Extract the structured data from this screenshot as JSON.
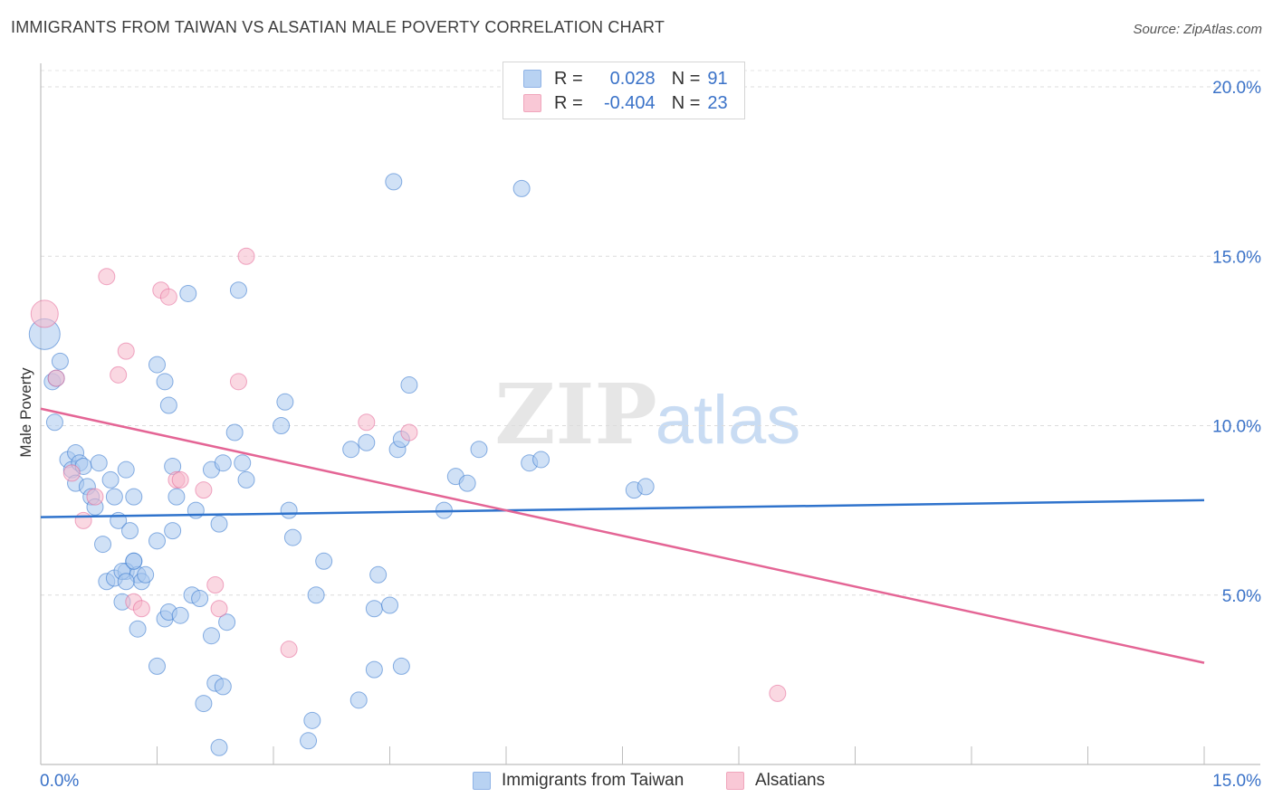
{
  "title": "IMMIGRANTS FROM TAIWAN VS ALSATIAN MALE POVERTY CORRELATION CHART",
  "source": "Source: ZipAtlas.com",
  "watermark": {
    "zip": "ZIP",
    "atlas": "atlas"
  },
  "legend_top": {
    "rows": [
      {
        "r_label": "R =",
        "r_value": "0.028",
        "n_label": "N =",
        "n_value": "91",
        "color": "#b8d2f2"
      },
      {
        "r_label": "R =",
        "r_value": "-0.404",
        "n_label": "N =",
        "n_value": "23",
        "color": "#f9c8d6"
      }
    ]
  },
  "legend_bottom": [
    "Immigrants from Taiwan",
    "Alsatians"
  ],
  "chart_data": {
    "type": "scatter",
    "title": "IMMIGRANTS FROM TAIWAN VS ALSATIAN MALE POVERTY CORRELATION CHART",
    "xlabel": "",
    "ylabel": "Male Poverty",
    "xlim": [
      0,
      15
    ],
    "ylim": [
      0,
      20
    ],
    "x_tick_labels": [
      "0.0%",
      "15.0%"
    ],
    "y_ticks": [
      5,
      10,
      15,
      20
    ],
    "y_tick_labels": [
      "5.0%",
      "10.0%",
      "15.0%",
      "20.0%"
    ],
    "grid": true,
    "series": [
      {
        "name": "Immigrants from Taiwan",
        "color": "#a9c8ef",
        "line_color": "#2f73cc",
        "trend": [
          [
            0,
            7.3
          ],
          [
            15,
            7.8
          ]
        ],
        "points": [
          [
            0.05,
            12.7
          ],
          [
            0.15,
            11.3
          ],
          [
            0.2,
            11.4
          ],
          [
            0.25,
            11.9
          ],
          [
            0.18,
            10.1
          ],
          [
            0.35,
            9.0
          ],
          [
            0.4,
            8.7
          ],
          [
            0.45,
            9.2
          ],
          [
            0.5,
            8.9
          ],
          [
            0.55,
            8.8
          ],
          [
            0.45,
            8.3
          ],
          [
            0.6,
            8.2
          ],
          [
            0.75,
            8.9
          ],
          [
            0.65,
            7.9
          ],
          [
            0.7,
            7.6
          ],
          [
            0.9,
            8.4
          ],
          [
            0.95,
            7.9
          ],
          [
            1.0,
            7.2
          ],
          [
            1.1,
            8.7
          ],
          [
            1.2,
            7.9
          ],
          [
            0.8,
            6.5
          ],
          [
            0.85,
            5.4
          ],
          [
            0.95,
            5.5
          ],
          [
            1.2,
            6.0
          ],
          [
            1.1,
            5.7
          ],
          [
            1.05,
            5.7
          ],
          [
            1.25,
            5.6
          ],
          [
            1.3,
            5.4
          ],
          [
            1.1,
            5.4
          ],
          [
            1.05,
            4.8
          ],
          [
            1.15,
            6.9
          ],
          [
            1.2,
            6.0
          ],
          [
            1.25,
            4.0
          ],
          [
            1.35,
            5.6
          ],
          [
            1.5,
            6.6
          ],
          [
            1.6,
            4.3
          ],
          [
            1.65,
            4.5
          ],
          [
            1.8,
            4.4
          ],
          [
            1.5,
            2.9
          ],
          [
            1.95,
            5.0
          ],
          [
            2.05,
            4.9
          ],
          [
            2.2,
            3.8
          ],
          [
            2.25,
            2.4
          ],
          [
            2.4,
            4.2
          ],
          [
            2.1,
            1.8
          ],
          [
            2.35,
            2.3
          ],
          [
            1.5,
            11.8
          ],
          [
            1.6,
            11.3
          ],
          [
            1.65,
            10.6
          ],
          [
            1.9,
            13.9
          ],
          [
            2.55,
            14.0
          ],
          [
            2.5,
            9.8
          ],
          [
            2.6,
            8.9
          ],
          [
            2.65,
            8.4
          ],
          [
            2.3,
            7.1
          ],
          [
            2.0,
            7.5
          ],
          [
            1.75,
            7.9
          ],
          [
            1.7,
            6.9
          ],
          [
            1.7,
            8.8
          ],
          [
            2.2,
            8.7
          ],
          [
            2.35,
            8.9
          ],
          [
            2.3,
            0.5
          ],
          [
            3.15,
            10.7
          ],
          [
            3.1,
            10.0
          ],
          [
            3.25,
            6.7
          ],
          [
            3.2,
            7.5
          ],
          [
            3.45,
            0.7
          ],
          [
            3.55,
            5.0
          ],
          [
            3.5,
            1.3
          ],
          [
            3.65,
            6.0
          ],
          [
            4.0,
            9.3
          ],
          [
            4.2,
            9.5
          ],
          [
            4.3,
            4.6
          ],
          [
            4.35,
            5.6
          ],
          [
            4.1,
            1.9
          ],
          [
            4.3,
            2.8
          ],
          [
            4.65,
            2.9
          ],
          [
            4.5,
            4.7
          ],
          [
            4.6,
            9.3
          ],
          [
            4.75,
            11.2
          ],
          [
            4.55,
            17.2
          ],
          [
            4.65,
            9.6
          ],
          [
            5.2,
            7.5
          ],
          [
            5.35,
            8.5
          ],
          [
            5.5,
            8.3
          ],
          [
            5.65,
            9.3
          ],
          [
            6.3,
            8.9
          ],
          [
            6.45,
            9.0
          ],
          [
            7.65,
            8.1
          ],
          [
            7.8,
            8.2
          ],
          [
            6.2,
            17.0
          ]
        ]
      },
      {
        "name": "Alsatians",
        "color": "#f6b8cb",
        "line_color": "#e46595",
        "trend": [
          [
            0,
            10.5
          ],
          [
            15,
            3.0
          ]
        ],
        "points": [
          [
            0.05,
            13.3
          ],
          [
            0.2,
            11.4
          ],
          [
            0.4,
            8.6
          ],
          [
            0.55,
            7.2
          ],
          [
            0.7,
            7.9
          ],
          [
            0.85,
            14.4
          ],
          [
            1.0,
            11.5
          ],
          [
            1.1,
            12.2
          ],
          [
            1.2,
            4.8
          ],
          [
            1.3,
            4.6
          ],
          [
            1.55,
            14.0
          ],
          [
            1.65,
            13.8
          ],
          [
            1.75,
            8.4
          ],
          [
            1.8,
            8.4
          ],
          [
            2.1,
            8.1
          ],
          [
            2.25,
            5.3
          ],
          [
            2.3,
            4.6
          ],
          [
            2.55,
            11.3
          ],
          [
            2.65,
            15.0
          ],
          [
            3.2,
            3.4
          ],
          [
            4.2,
            10.1
          ],
          [
            4.75,
            9.8
          ],
          [
            9.5,
            2.1
          ]
        ]
      }
    ]
  }
}
